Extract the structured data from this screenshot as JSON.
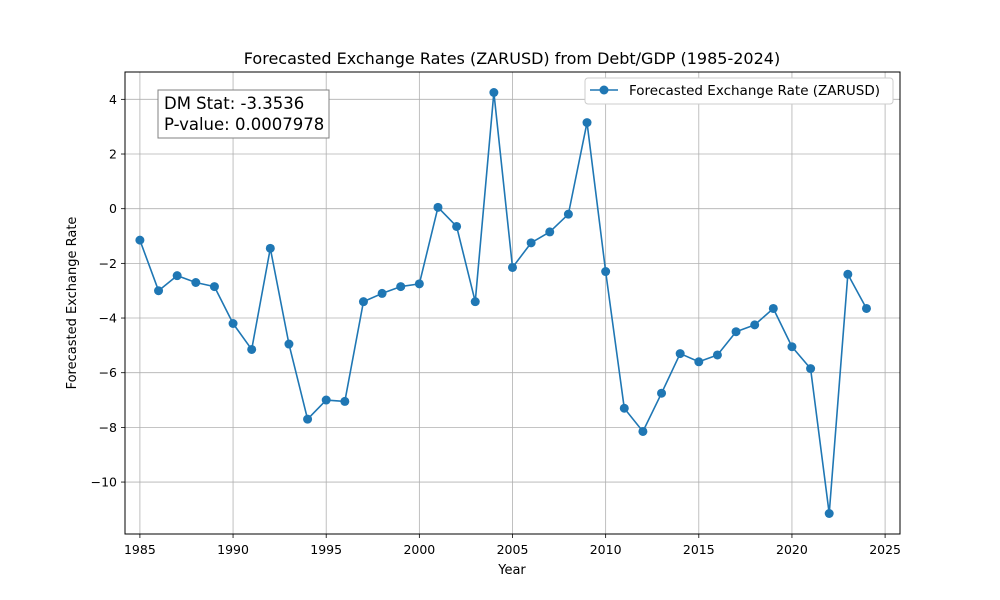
{
  "chart_data": {
    "type": "line",
    "title": "Forecasted Exchange Rates (ZARUSD) from Debt/GDP (1985-2024)",
    "xlabel": "Year",
    "ylabel": "Forecasted Exchange Rate",
    "xlim": [
      1984.2,
      2025.8
    ],
    "ylim": [
      -11.9,
      5.0
    ],
    "xticks": [
      1985,
      1990,
      1995,
      2000,
      2005,
      2010,
      2015,
      2020,
      2025
    ],
    "yticks": [
      4,
      2,
      0,
      -2,
      -4,
      -6,
      -8,
      -10
    ],
    "ytick_labels": [
      "4",
      "2",
      "0",
      "−2",
      "−4",
      "−6",
      "−8",
      "−10"
    ],
    "grid": true,
    "legend_position": "top-right",
    "series": [
      {
        "name": "Forecasted Exchange Rate (ZARUSD)",
        "color": "#1f77b4",
        "marker": "circle",
        "x": [
          1985,
          1986,
          1987,
          1988,
          1989,
          1990,
          1991,
          1992,
          1993,
          1994,
          1995,
          1996,
          1997,
          1998,
          1999,
          2000,
          2001,
          2002,
          2003,
          2004,
          2005,
          2006,
          2007,
          2008,
          2009,
          2010,
          2011,
          2012,
          2013,
          2014,
          2015,
          2016,
          2017,
          2018,
          2019,
          2020,
          2021,
          2022,
          2023,
          2024
        ],
        "y": [
          -1.15,
          -3.0,
          -2.45,
          -2.7,
          -2.85,
          -4.2,
          -5.15,
          -1.45,
          -4.95,
          -7.7,
          -7.0,
          -7.05,
          -3.4,
          -3.1,
          -2.85,
          -2.75,
          0.05,
          -0.65,
          -3.4,
          4.25,
          -2.15,
          -1.25,
          -0.85,
          -0.2,
          3.15,
          -2.3,
          -7.3,
          -8.15,
          -6.75,
          -5.3,
          -5.6,
          -5.35,
          -4.5,
          -4.25,
          -3.65,
          -5.05,
          -5.85,
          -11.15,
          -2.4,
          -3.65
        ]
      }
    ],
    "annotation": {
      "line1": "DM Stat: -3.3536",
      "line2": "P-value: 0.0007978",
      "position": "top-left"
    }
  }
}
